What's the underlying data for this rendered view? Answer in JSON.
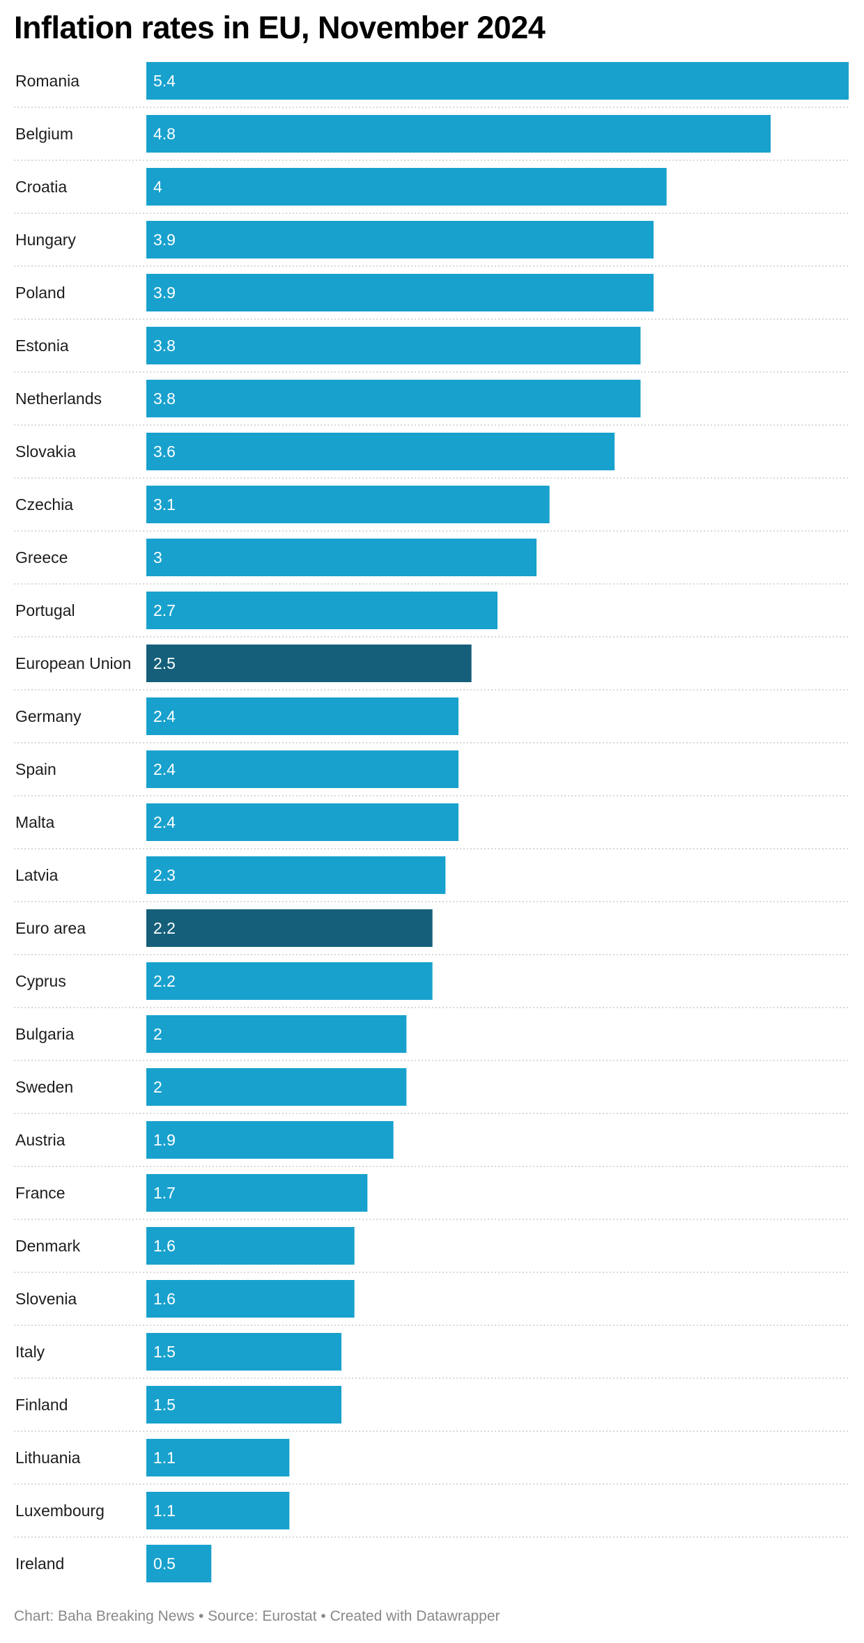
{
  "chart_data": {
    "type": "bar",
    "orientation": "horizontal",
    "title": "Inflation rates in EU, November 2024",
    "categories": [
      "Romania",
      "Belgium",
      "Croatia",
      "Hungary",
      "Poland",
      "Estonia",
      "Netherlands",
      "Slovakia",
      "Czechia",
      "Greece",
      "Portugal",
      "European Union",
      "Germany",
      "Spain",
      "Malta",
      "Latvia",
      "Euro area",
      "Cyprus",
      "Bulgaria",
      "Sweden",
      "Austria",
      "France",
      "Denmark",
      "Slovenia",
      "Italy",
      "Finland",
      "Lithuania",
      "Luxembourg",
      "Ireland"
    ],
    "values": [
      5.4,
      4.8,
      4,
      3.9,
      3.9,
      3.8,
      3.8,
      3.6,
      3.1,
      3,
      2.7,
      2.5,
      2.4,
      2.4,
      2.4,
      2.3,
      2.2,
      2.2,
      2,
      2,
      1.9,
      1.7,
      1.6,
      1.6,
      1.5,
      1.5,
      1.1,
      1.1,
      0.5
    ],
    "value_labels": [
      "5.4",
      "4.8",
      "4",
      "3.9",
      "3.9",
      "3.8",
      "3.8",
      "3.6",
      "3.1",
      "3",
      "2.7",
      "2.5",
      "2.4",
      "2.4",
      "2.4",
      "2.3",
      "2.2",
      "2.2",
      "2",
      "2",
      "1.9",
      "1.7",
      "1.6",
      "1.6",
      "1.5",
      "1.5",
      "1.1",
      "1.1",
      "0.5"
    ],
    "highlighted": [
      "European Union",
      "Euro area"
    ],
    "xlim": [
      0,
      5.4
    ],
    "grid": false,
    "colors": {
      "bar": "#18a1cd",
      "highlight": "#155f7a",
      "value_text": "#ffffff",
      "separator": "#cccccc"
    }
  },
  "footer": "Chart: Baha Breaking News • Source: Eurostat • Created with Datawrapper"
}
